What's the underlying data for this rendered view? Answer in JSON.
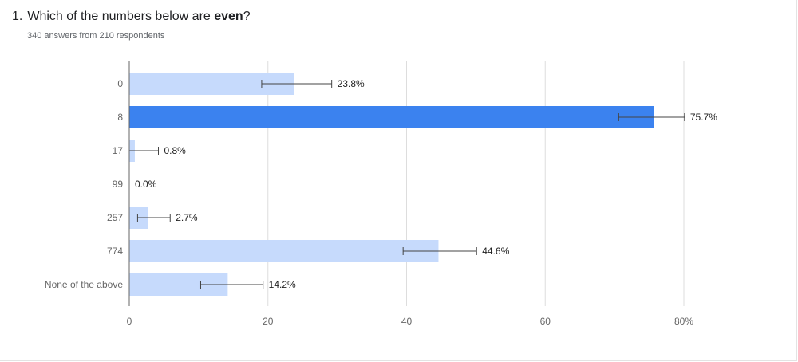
{
  "question": {
    "number": "1.",
    "text_before": "Which of the numbers below are ",
    "text_bold": "even",
    "text_after": "?"
  },
  "subtitle": "340 answers from 210 respondents",
  "colors": {
    "bar_default": "#c6dafc",
    "bar_highlight": "#3b82ef",
    "grid": "#dddddd",
    "axis": "#666666",
    "error_bar": "#444444",
    "tick_text": "#666666",
    "label_text": "#222222"
  },
  "chart_data": {
    "type": "bar",
    "orientation": "horizontal",
    "categories": [
      "0",
      "8",
      "17",
      "99",
      "257",
      "774",
      "None of the above"
    ],
    "values": [
      23.8,
      75.7,
      0.8,
      0.0,
      2.7,
      44.6,
      14.2
    ],
    "value_labels": [
      "23.8%",
      "75.7%",
      "0.8%",
      "0.0%",
      "2.7%",
      "44.6%",
      "14.2%"
    ],
    "error_low": [
      19.1,
      70.6,
      0.0,
      0.0,
      1.2,
      39.5,
      10.3
    ],
    "error_high": [
      29.2,
      80.1,
      4.2,
      0.0,
      5.9,
      50.1,
      19.3
    ],
    "highlight_index": 1,
    "xlim": [
      0,
      80
    ],
    "x_ticks": [
      "0",
      "20",
      "40",
      "60",
      "80%"
    ],
    "grid": true
  }
}
